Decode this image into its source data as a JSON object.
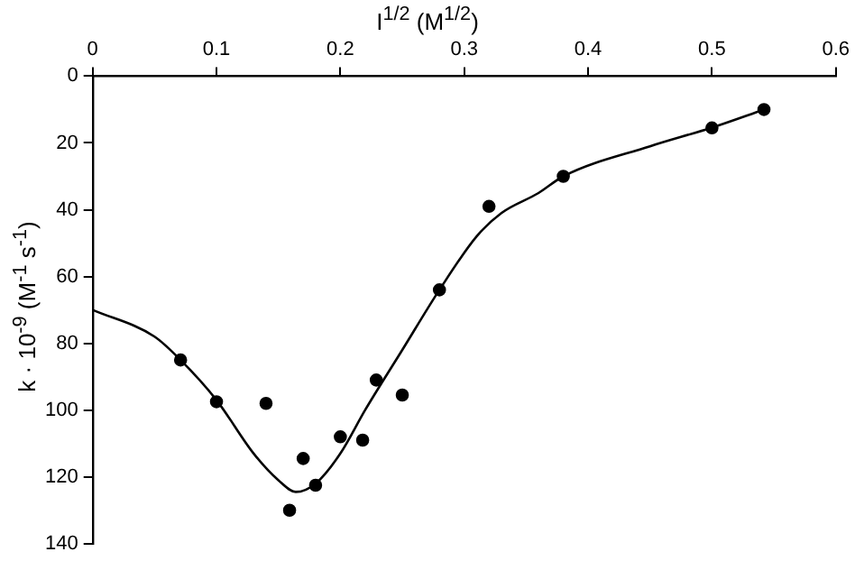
{
  "chart_data": {
    "type": "scatter",
    "xlabel": "I$^{1/2}$ (M$^{1/2}$)",
    "ylabel": "k · 10$^{-9}$ (M$^{-1}$ s$^{-1}$)",
    "xlim": [
      0,
      0.6
    ],
    "xticks": [
      0,
      0.1,
      0.2,
      0.3,
      0.4,
      0.5,
      0.6
    ],
    "ylim": [
      140,
      0
    ],
    "yticks": [
      0,
      20,
      40,
      60,
      80,
      100,
      120,
      140
    ],
    "grid": false,
    "legend": false,
    "marker": "circle",
    "series": [
      {
        "color": "#000000",
        "x": [
          0.071,
          0.1,
          0.14,
          0.159,
          0.17,
          0.18,
          0.2,
          0.218,
          0.229,
          0.25,
          0.28,
          0.32,
          0.38,
          0.5,
          0.542
        ],
        "values": [
          85,
          97.5,
          98,
          130,
          114.5,
          122.5,
          108,
          109,
          91,
          95.5,
          64,
          39,
          30,
          15.5,
          10
        ]
      },
      {
        "type": "line",
        "color": "#000000",
        "marker": "none",
        "x": [
          0,
          0.05,
          0.071,
          0.1,
          0.13,
          0.15,
          0.164,
          0.18,
          0.2,
          0.22,
          0.25,
          0.28,
          0.31,
          0.33,
          0.36,
          0.38,
          0.45,
          0.5,
          0.542
        ],
        "values": [
          70,
          78,
          85,
          97,
          113,
          121,
          124.5,
          122,
          113,
          100,
          82,
          64,
          48,
          41,
          35,
          30,
          21,
          15.4,
          10
        ]
      }
    ]
  }
}
